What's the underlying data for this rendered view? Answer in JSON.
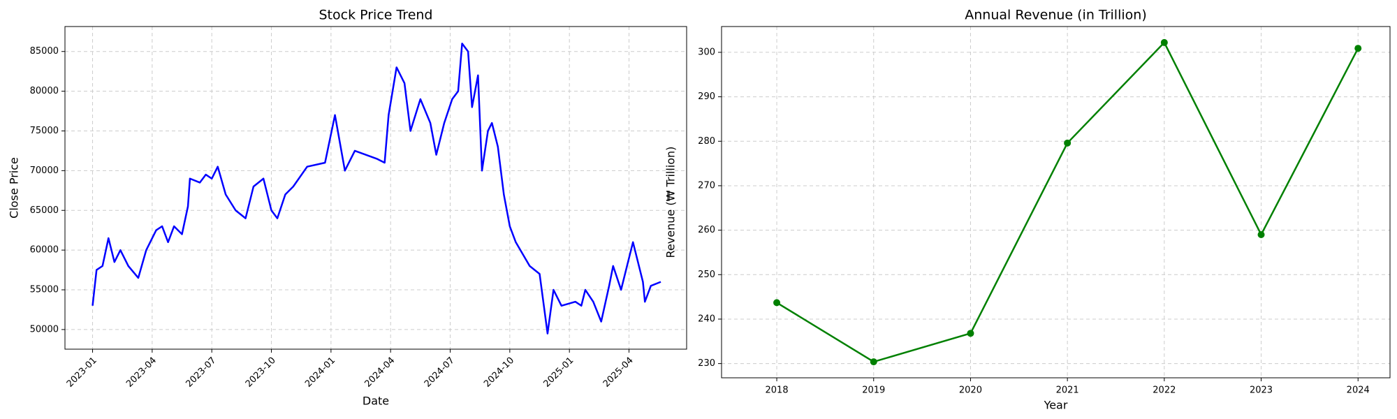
{
  "chart_data": [
    {
      "type": "line",
      "title": "Stock Price Trend",
      "xlabel": "Date",
      "ylabel": "Close Price",
      "color": "#0000ff",
      "marker": false,
      "rotate_xticks": true,
      "grid": true,
      "x": [
        0,
        0.2,
        0.5,
        0.8,
        1.1,
        1.4,
        1.8,
        2.3,
        2.7,
        3.2,
        3.5,
        3.8,
        4.1,
        4.5,
        4.8,
        4.9,
        5.4,
        5.7,
        6.0,
        6.3,
        6.7,
        7.2,
        7.7,
        8.1,
        8.6,
        9.0,
        9.3,
        9.7,
        10.1,
        10.8,
        11.7,
        12.2,
        12.7,
        13.2,
        14.3,
        14.7,
        14.9,
        15.3,
        15.7,
        16.0,
        16.5,
        17.0,
        17.3,
        17.7,
        18.1,
        18.4,
        18.6,
        18.9,
        19.1,
        19.4,
        19.6,
        19.9,
        20.1,
        20.4,
        20.7,
        21.0,
        21.3,
        22.0,
        22.5,
        22.9,
        23.2,
        23.6,
        24.3,
        24.6,
        24.8,
        25.2,
        25.6,
        26.0,
        26.2,
        26.6,
        27.2,
        27.7,
        27.8,
        28.1,
        28.6
      ],
      "values": [
        53000,
        57500,
        58000,
        61500,
        58500,
        60000,
        58000,
        56500,
        60000,
        62500,
        63000,
        61000,
        63000,
        62000,
        65500,
        69000,
        68500,
        69500,
        69000,
        70500,
        67000,
        65000,
        64000,
        68000,
        69000,
        65000,
        64000,
        67000,
        68000,
        70500,
        71000,
        77000,
        70000,
        72500,
        71500,
        71000,
        77000,
        83000,
        81000,
        75000,
        79000,
        76000,
        72000,
        76000,
        79000,
        80000,
        86000,
        85000,
        78000,
        82000,
        70000,
        75000,
        76000,
        73000,
        67000,
        63000,
        61000,
        58000,
        57000,
        49500,
        55000,
        53000,
        53500,
        53000,
        55000,
        53500,
        51000,
        55500,
        58000,
        55000,
        61000,
        56000,
        53500,
        55500,
        56000
      ],
      "xlim": [
        -1.39,
        29.9
      ],
      "ylim": [
        47530,
        88140
      ],
      "xticks": [
        {
          "value": 0,
          "label": "2023-01"
        },
        {
          "value": 3,
          "label": "2023-04"
        },
        {
          "value": 6,
          "label": "2023-07"
        },
        {
          "value": 9,
          "label": "2023-10"
        },
        {
          "value": 12,
          "label": "2024-01"
        },
        {
          "value": 15,
          "label": "2024-04"
        },
        {
          "value": 18,
          "label": "2024-07"
        },
        {
          "value": 21,
          "label": "2024-10"
        },
        {
          "value": 24,
          "label": "2025-01"
        },
        {
          "value": 27,
          "label": "2025-04"
        }
      ],
      "yticks": [
        50000,
        55000,
        60000,
        65000,
        70000,
        75000,
        80000,
        85000
      ]
    },
    {
      "type": "line",
      "title": "Annual Revenue (in Trillion)",
      "xlabel": "Year",
      "ylabel": "Revenue (₩ Trillion)",
      "color": "#008000",
      "marker": true,
      "rotate_xticks": false,
      "grid": true,
      "x": [
        2018,
        2019,
        2020,
        2021,
        2022,
        2023,
        2024
      ],
      "values": [
        243.7,
        230.4,
        236.8,
        279.6,
        302.2,
        259.0,
        300.9
      ],
      "xlim": [
        2017.43,
        2024.33
      ],
      "ylim": [
        226.8,
        305.8
      ],
      "xticks": [
        2018,
        2019,
        2020,
        2021,
        2022,
        2023,
        2024
      ],
      "yticks": [
        230,
        240,
        250,
        260,
        270,
        280,
        290,
        300
      ]
    }
  ]
}
